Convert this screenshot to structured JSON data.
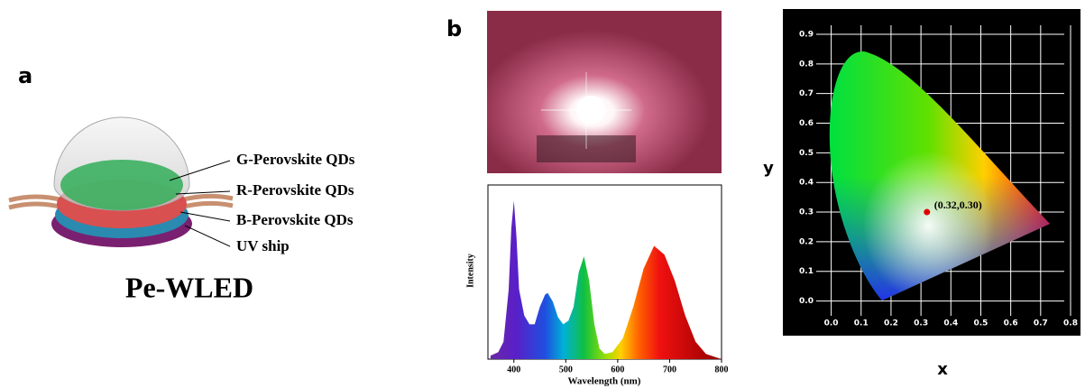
{
  "panel_labels": [
    "a",
    "b"
  ],
  "diagram": {
    "labels": [
      "G-Perovskite QDs",
      "R-Perovskite QDs",
      "B-Perovskite QDs",
      "UV ship"
    ],
    "title": "Pe-WLED"
  },
  "chart_data": [
    {
      "type": "area",
      "x_label": "Wavelength (nm)",
      "y_label": "Intensity",
      "x": [
        355,
        370,
        380,
        390,
        395,
        400,
        405,
        410,
        420,
        430,
        440,
        450,
        460,
        465,
        475,
        485,
        495,
        505,
        515,
        525,
        535,
        545,
        555,
        565,
        575,
        590,
        610,
        630,
        650,
        670,
        690,
        710,
        730,
        750,
        770,
        790,
        800
      ],
      "values": [
        0.02,
        0.04,
        0.1,
        0.4,
        0.75,
        0.91,
        0.7,
        0.4,
        0.25,
        0.2,
        0.2,
        0.3,
        0.37,
        0.38,
        0.33,
        0.24,
        0.2,
        0.22,
        0.3,
        0.5,
        0.59,
        0.45,
        0.2,
        0.06,
        0.03,
        0.04,
        0.12,
        0.3,
        0.52,
        0.65,
        0.6,
        0.45,
        0.25,
        0.1,
        0.03,
        0.01,
        0
      ],
      "xlim": [
        350,
        800
      ],
      "xticks": [
        400,
        500,
        600,
        700,
        800
      ],
      "ylim": [
        0,
        1
      ]
    },
    {
      "type": "scatter",
      "x_label": "x",
      "y_label": "y",
      "x": [
        0.32
      ],
      "values": [
        0.3
      ],
      "value_labels": [
        "(0.32,0.30)"
      ],
      "color": "#e00000",
      "xlim": [
        -0.05,
        0.8
      ],
      "ylim": [
        -0.05,
        0.9
      ],
      "xticks": [
        {
          "value": 0,
          "label": "0.0"
        },
        0.1,
        0.2,
        0.3,
        0.4,
        0.5,
        0.6,
        0.7,
        0.8
      ],
      "yticks": [
        {
          "value": 0,
          "label": "0.0"
        },
        0.1,
        0.2,
        0.3,
        0.4,
        0.5,
        0.6,
        0.7,
        0.8,
        0.9
      ],
      "grid": true
    }
  ]
}
